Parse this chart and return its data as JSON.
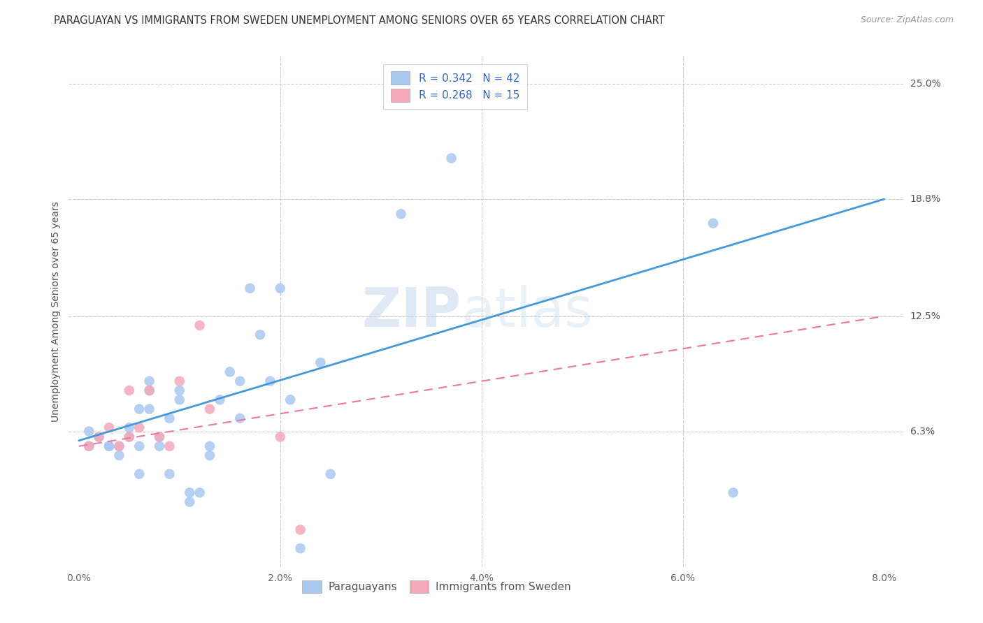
{
  "title": "PARAGUAYAN VS IMMIGRANTS FROM SWEDEN UNEMPLOYMENT AMONG SENIORS OVER 65 YEARS CORRELATION CHART",
  "source": "Source: ZipAtlas.com",
  "ylabel": "Unemployment Among Seniors over 65 years",
  "xlabel_ticks": [
    "0.0%",
    "",
    "2.0%",
    "",
    "4.0%",
    "",
    "6.0%",
    "",
    "8.0%"
  ],
  "xlabel_vals": [
    0.0,
    0.01,
    0.02,
    0.03,
    0.04,
    0.05,
    0.06,
    0.07,
    0.08
  ],
  "ytick_labels": [
    "6.3%",
    "12.5%",
    "18.8%",
    "25.0%"
  ],
  "ytick_vals": [
    0.063,
    0.125,
    0.188,
    0.25
  ],
  "xlim": [
    -0.001,
    0.082
  ],
  "ylim": [
    -0.01,
    0.265
  ],
  "legend1_r": "R = 0.342",
  "legend1_n": "N = 42",
  "legend2_r": "R = 0.268",
  "legend2_n": "N = 15",
  "legend_label1": "Paraguayans",
  "legend_label2": "Immigrants from Sweden",
  "blue_color": "#a8c8f0",
  "pink_color": "#f4a8b8",
  "line_blue": "#4499dd",
  "line_pink": "#ee7799",
  "watermark_zip": "ZIP",
  "watermark_atlas": "atlas",
  "paraguayan_x": [
    0.001,
    0.001,
    0.002,
    0.003,
    0.003,
    0.004,
    0.004,
    0.005,
    0.005,
    0.006,
    0.006,
    0.006,
    0.007,
    0.007,
    0.007,
    0.008,
    0.008,
    0.009,
    0.009,
    0.01,
    0.01,
    0.011,
    0.011,
    0.012,
    0.013,
    0.013,
    0.014,
    0.015,
    0.016,
    0.016,
    0.017,
    0.018,
    0.019,
    0.02,
    0.021,
    0.022,
    0.024,
    0.025,
    0.032,
    0.037,
    0.063,
    0.065
  ],
  "paraguayan_y": [
    0.063,
    0.055,
    0.06,
    0.055,
    0.055,
    0.05,
    0.055,
    0.06,
    0.065,
    0.04,
    0.055,
    0.075,
    0.075,
    0.085,
    0.09,
    0.06,
    0.055,
    0.04,
    0.07,
    0.08,
    0.085,
    0.025,
    0.03,
    0.03,
    0.05,
    0.055,
    0.08,
    0.095,
    0.07,
    0.09,
    0.14,
    0.115,
    0.09,
    0.14,
    0.08,
    0.0,
    0.1,
    0.04,
    0.18,
    0.21,
    0.175,
    0.03
  ],
  "sweden_x": [
    0.001,
    0.002,
    0.003,
    0.004,
    0.005,
    0.005,
    0.006,
    0.007,
    0.008,
    0.009,
    0.01,
    0.012,
    0.013,
    0.02,
    0.022
  ],
  "sweden_y": [
    0.055,
    0.06,
    0.065,
    0.055,
    0.06,
    0.085,
    0.065,
    0.085,
    0.06,
    0.055,
    0.09,
    0.12,
    0.075,
    0.06,
    0.01
  ],
  "blue_line_x": [
    0.0,
    0.08
  ],
  "blue_line_y": [
    0.058,
    0.188
  ],
  "pink_line_x": [
    0.0,
    0.08
  ],
  "pink_line_y": [
    0.055,
    0.125
  ],
  "title_fontsize": 10.5,
  "source_fontsize": 9,
  "tick_fontsize": 10,
  "ylabel_fontsize": 10,
  "legend_fontsize": 11
}
